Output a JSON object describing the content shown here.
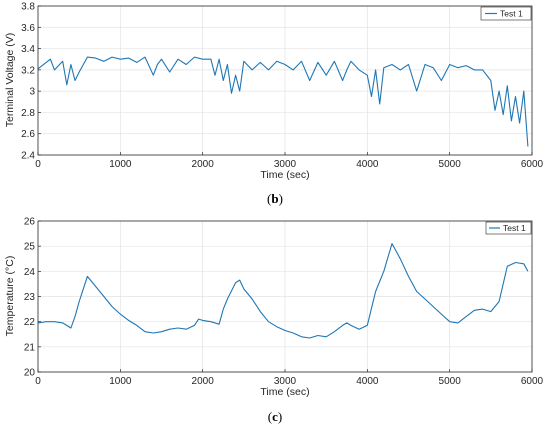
{
  "colors": {
    "series": "#1f77b4",
    "grid": "#e3e3e3",
    "axis": "#262626",
    "background": "#ffffff"
  },
  "captions": {
    "b": {
      "open": "(",
      "letter": "b",
      "close": ")"
    },
    "c": {
      "open": "(",
      "letter": "c",
      "close": ")"
    }
  },
  "chart_data": [
    {
      "type": "line",
      "xlabel": "Time (sec)",
      "ylabel": "Terminal Voltage (V)",
      "xlim": [
        0,
        6000
      ],
      "ylim": [
        2.4,
        3.8
      ],
      "xticks": [
        0,
        1000,
        2000,
        3000,
        4000,
        5000,
        6000
      ],
      "yticks": [
        2.4,
        2.6,
        2.8,
        3.0,
        3.2,
        3.4,
        3.6,
        3.8
      ],
      "ytick_labels": [
        "2.4",
        "2.6",
        "2.8",
        "3",
        "3.2",
        "3.4",
        "3.6",
        "3.8"
      ],
      "grid": true,
      "legend": "top-right",
      "series": [
        {
          "name": "Test 1",
          "x": [
            0,
            150,
            200,
            300,
            350,
            400,
            450,
            500,
            600,
            700,
            800,
            900,
            1000,
            1100,
            1200,
            1300,
            1400,
            1450,
            1500,
            1600,
            1700,
            1800,
            1900,
            2000,
            2100,
            2150,
            2200,
            2250,
            2300,
            2350,
            2400,
            2450,
            2500,
            2600,
            2700,
            2800,
            2900,
            3000,
            3100,
            3200,
            3300,
            3400,
            3500,
            3600,
            3700,
            3750,
            3800,
            3900,
            4000,
            4050,
            4100,
            4150,
            4200,
            4300,
            4400,
            4500,
            4600,
            4700,
            4800,
            4900,
            5000,
            5100,
            5200,
            5300,
            5400,
            5500,
            5550,
            5600,
            5650,
            5700,
            5750,
            5800,
            5850,
            5900,
            5950
          ],
          "y": [
            3.21,
            3.3,
            3.2,
            3.28,
            3.06,
            3.25,
            3.1,
            3.18,
            3.32,
            3.31,
            3.28,
            3.32,
            3.3,
            3.31,
            3.27,
            3.32,
            3.15,
            3.25,
            3.3,
            3.18,
            3.3,
            3.25,
            3.32,
            3.3,
            3.3,
            3.15,
            3.3,
            3.1,
            3.25,
            2.98,
            3.15,
            3.0,
            3.28,
            3.2,
            3.27,
            3.2,
            3.28,
            3.25,
            3.2,
            3.28,
            3.1,
            3.27,
            3.15,
            3.28,
            3.1,
            3.2,
            3.28,
            3.2,
            3.15,
            2.95,
            3.2,
            2.88,
            3.22,
            3.25,
            3.2,
            3.25,
            3.0,
            3.25,
            3.22,
            3.1,
            3.25,
            3.22,
            3.24,
            3.2,
            3.2,
            3.1,
            2.82,
            3.0,
            2.78,
            3.05,
            2.72,
            2.95,
            2.7,
            3.0,
            2.48
          ]
        }
      ]
    },
    {
      "type": "line",
      "xlabel": "Time (sec)",
      "ylabel": "Temperature (°C)",
      "xlim": [
        0,
        6000
      ],
      "ylim": [
        20,
        26
      ],
      "xticks": [
        0,
        1000,
        2000,
        3000,
        4000,
        5000,
        6000
      ],
      "yticks": [
        20,
        21,
        22,
        23,
        24,
        25,
        26
      ],
      "ytick_labels": [
        "20",
        "21",
        "22",
        "23",
        "24",
        "25",
        "26"
      ],
      "grid": true,
      "legend": "top-right",
      "series": [
        {
          "name": "Test 1",
          "x": [
            0,
            100,
            200,
            300,
            400,
            450,
            500,
            550,
            600,
            700,
            800,
            900,
            1000,
            1100,
            1200,
            1300,
            1400,
            1500,
            1600,
            1700,
            1800,
            1900,
            1950,
            2000,
            2100,
            2200,
            2250,
            2300,
            2400,
            2450,
            2500,
            2600,
            2700,
            2800,
            2900,
            3000,
            3100,
            3200,
            3300,
            3400,
            3500,
            3600,
            3700,
            3750,
            3800,
            3900,
            4000,
            4100,
            4200,
            4300,
            4400,
            4500,
            4600,
            4700,
            4800,
            4900,
            5000,
            5100,
            5200,
            5300,
            5400,
            5500,
            5600,
            5650,
            5700,
            5800,
            5900,
            5950
          ],
          "y": [
            21.95,
            22.0,
            22.0,
            21.95,
            21.75,
            22.2,
            22.8,
            23.3,
            23.8,
            23.4,
            23.0,
            22.6,
            22.3,
            22.05,
            21.85,
            21.6,
            21.55,
            21.6,
            21.7,
            21.75,
            21.7,
            21.85,
            22.1,
            22.05,
            22.0,
            21.9,
            22.5,
            22.9,
            23.55,
            23.65,
            23.3,
            22.9,
            22.4,
            22.0,
            21.8,
            21.65,
            21.55,
            21.4,
            21.35,
            21.45,
            21.4,
            21.6,
            21.85,
            21.95,
            21.85,
            21.7,
            21.85,
            23.2,
            24.0,
            25.1,
            24.5,
            23.8,
            23.2,
            22.9,
            22.6,
            22.3,
            22.0,
            21.95,
            22.2,
            22.45,
            22.5,
            22.4,
            22.8,
            23.5,
            24.2,
            24.35,
            24.3,
            24.0
          ]
        }
      ]
    }
  ]
}
